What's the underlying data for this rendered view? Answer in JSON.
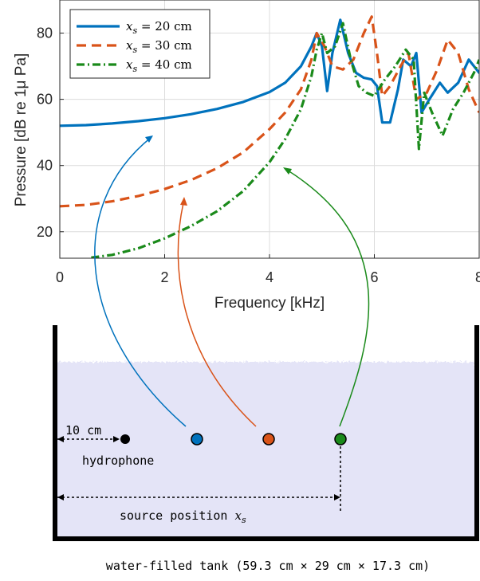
{
  "chart_data": {
    "type": "line",
    "xlabel": "Frequency [kHz]",
    "ylabel": "Pressure [dB re 1μ Pa]",
    "xlim": [
      0,
      8
    ],
    "ylim": [
      12,
      90
    ],
    "xticks": [
      0,
      2,
      4,
      6,
      8
    ],
    "yticks": [
      20,
      40,
      60,
      80
    ],
    "grid": true,
    "legend_placement": "top-left",
    "series": [
      {
        "name": "x_s = 20 cm",
        "legend_var": "x",
        "legend_sub": "s",
        "legend_rest": " = 20 cm",
        "color": "#0072BD",
        "style": "solid",
        "x": [
          0,
          0.5,
          1,
          1.5,
          2,
          2.5,
          3,
          3.5,
          4,
          4.3,
          4.6,
          4.8,
          4.9,
          5.0,
          5.1,
          5.2,
          5.35,
          5.5,
          5.65,
          5.8,
          5.95,
          6.05,
          6.15,
          6.3,
          6.45,
          6.55,
          6.7,
          6.8,
          6.9,
          7.05,
          7.25,
          7.4,
          7.6,
          7.8,
          8.0
        ],
        "y": [
          52,
          52.2,
          52.7,
          53.4,
          54.3,
          55.5,
          57.1,
          59.2,
          62.2,
          65,
          70,
          76,
          80,
          76,
          62.5,
          74,
          84,
          74,
          68,
          66.5,
          66,
          64,
          53,
          53,
          63,
          72,
          70,
          74,
          56,
          60,
          65,
          62,
          65,
          72,
          68
        ]
      },
      {
        "name": "x_s = 30 cm",
        "legend_var": "x",
        "legend_sub": "s",
        "legend_rest": " = 30 cm",
        "color": "#D95319",
        "style": "dashed",
        "x": [
          0,
          0.5,
          1,
          1.5,
          2,
          2.5,
          3,
          3.5,
          4,
          4.3,
          4.6,
          4.8,
          4.9,
          5.05,
          5.2,
          5.4,
          5.6,
          5.8,
          5.95,
          6.05,
          6.15,
          6.3,
          6.5,
          6.65,
          6.8,
          7.0,
          7.2,
          7.4,
          7.6,
          7.8,
          8.0
        ],
        "y": [
          27.7,
          28.1,
          29.2,
          30.8,
          32.9,
          35.6,
          39.2,
          44.0,
          51.0,
          56,
          63,
          72,
          80,
          76,
          70,
          69,
          72,
          80,
          85,
          74,
          61,
          64,
          70,
          74,
          60,
          62,
          69,
          78,
          74,
          63,
          56
        ]
      },
      {
        "name": "x_s = 40 cm",
        "legend_var": "x",
        "legend_sub": "s",
        "legend_rest": " = 40 cm",
        "color": "#1A8A1A",
        "style": "dashdot",
        "x": [
          0.6,
          1,
          1.5,
          2,
          2.5,
          3,
          3.5,
          4,
          4.3,
          4.6,
          4.8,
          4.9,
          5.0,
          5.1,
          5.25,
          5.4,
          5.55,
          5.7,
          5.85,
          6.0,
          6.2,
          6.4,
          6.6,
          6.75,
          6.85,
          6.95,
          7.1,
          7.3,
          7.5,
          7.7,
          7.9,
          8.0
        ],
        "y": [
          12.2,
          13.0,
          15.0,
          18.0,
          21.7,
          26.2,
          32.3,
          41.0,
          48,
          57,
          67,
          75,
          80,
          74,
          76,
          83,
          72,
          64,
          62,
          61,
          66,
          70,
          75,
          72,
          45,
          62,
          56,
          49,
          57,
          62,
          68,
          72
        ]
      }
    ]
  },
  "diagram": {
    "label_10cm": "10 cm",
    "label_hydrophone": "hydrophone",
    "label_source_position": "source position ",
    "label_source_var": "x",
    "label_source_sub": "s",
    "caption": "water-filled tank (59.3 cm × 29 cm × 17.3 cm)",
    "water_color": "#E4E4F7",
    "tank_wall_color": "#000000"
  }
}
